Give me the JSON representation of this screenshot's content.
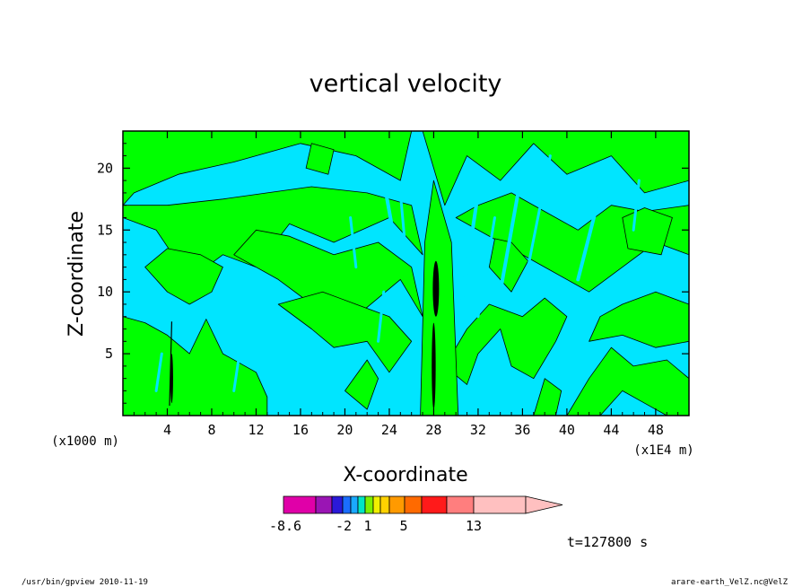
{
  "chart_data": {
    "type": "heatmap",
    "title": "vertical velocity",
    "xlabel": "X-coordinate",
    "ylabel": "Z-coordinate",
    "x_unit": "(x1E4 m)",
    "y_unit": "(x1000 m)",
    "x_ticks": [
      4,
      8,
      12,
      16,
      20,
      24,
      28,
      32,
      36,
      40,
      44,
      48
    ],
    "y_ticks": [
      5,
      10,
      15,
      20
    ],
    "xlim": [
      0,
      51
    ],
    "ylim": [
      0,
      23
    ],
    "grid": false,
    "colorbar": {
      "labels": [
        -8.6,
        -2,
        1,
        5,
        13
      ],
      "colors": [
        "#e000a8",
        "#9a15b4",
        "#2a19d8",
        "#1a6dff",
        "#1aa9ff",
        "#00e5c4",
        "#7cf000",
        "#f0f000",
        "#ffd200",
        "#ff9a00",
        "#ff6a00",
        "#ff1a1a",
        "#ff7e7e",
        "#ffc0c0"
      ],
      "extend": "max"
    },
    "dominant_levels": [
      {
        "name": "negative",
        "color": "#00e5ff"
      },
      {
        "name": "positive",
        "color": "#00ff00"
      }
    ]
  },
  "time_label": "t=127800 s",
  "footer": {
    "left": "/usr/bin/gpview   2010-11-19",
    "right": "arare-earth_VelZ.nc@VelZ"
  }
}
